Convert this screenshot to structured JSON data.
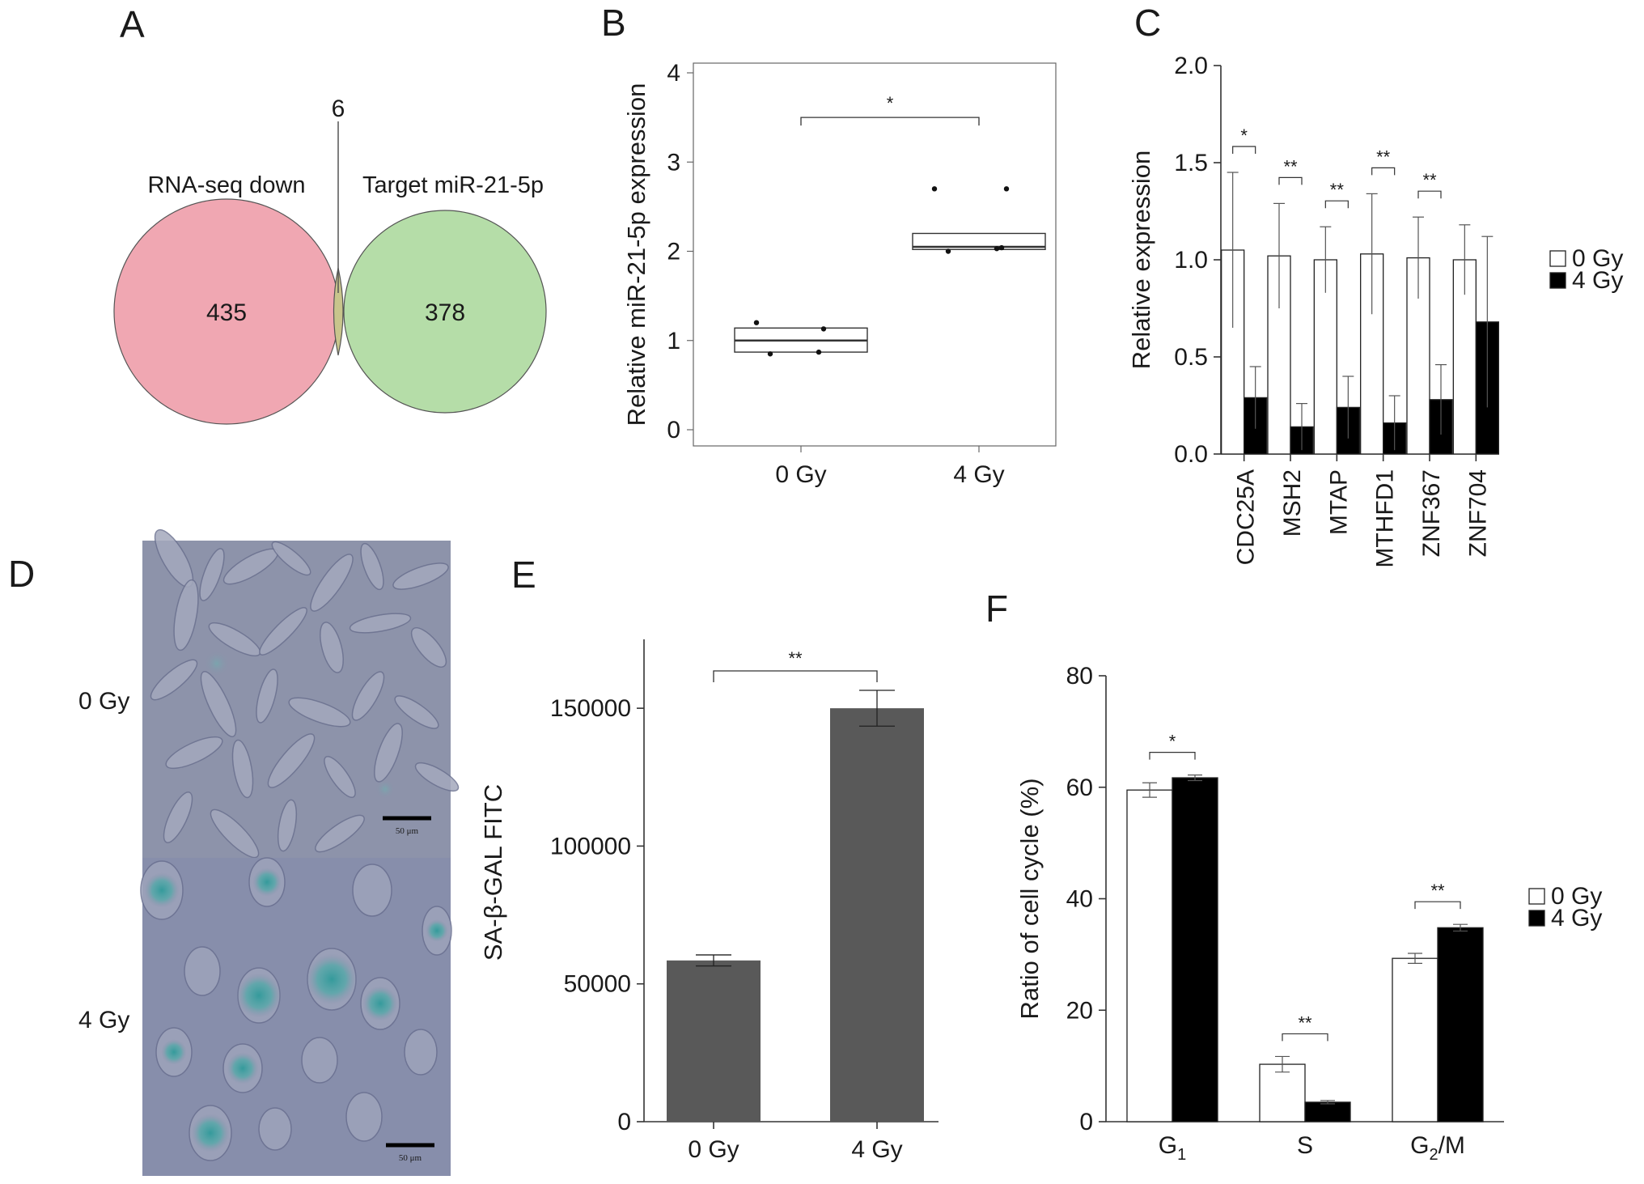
{
  "panels": {
    "A": {
      "letter": "A",
      "overlap_label": "6",
      "left_label": "RNA-seq down",
      "right_label": "Target miR-21-5p",
      "left_count": "435",
      "right_count": "378",
      "colors": {
        "left": "#f0a7b2",
        "right": "#b5dda8",
        "overlap": "#c8c58c"
      }
    },
    "B": {
      "letter": "B"
    },
    "C": {
      "letter": "C"
    },
    "D": {
      "letter": "D",
      "image_labels": [
        "0 Gy",
        "4 Gy"
      ],
      "scale_bar_label": "50 μm",
      "colors": {
        "background": "#8a91ab",
        "cells": "#2f9a9a"
      }
    },
    "E": {
      "letter": "E"
    },
    "F": {
      "letter": "F"
    }
  },
  "chart_data": [
    {
      "panel": "B",
      "type": "box",
      "categories": [
        "0 Gy",
        "4 Gy"
      ],
      "ylabel": "Relative miR-21-5p expression",
      "ylim": [
        0,
        4
      ],
      "yticks": [
        0,
        1,
        2,
        3,
        4
      ],
      "boxes": [
        {
          "category": "0 Gy",
          "q1": 0.87,
          "median": 1.0,
          "q3": 1.14,
          "points": [
            0.85,
            0.87,
            1.13,
            1.2
          ]
        },
        {
          "category": "4 Gy",
          "q1": 2.02,
          "median": 2.05,
          "q3": 2.2,
          "points": [
            2.0,
            2.03,
            2.04,
            2.7,
            2.7
          ]
        }
      ],
      "significance": [
        {
          "between": [
            "0 Gy",
            "4 Gy"
          ],
          "label": "*"
        }
      ]
    },
    {
      "panel": "C",
      "type": "bar",
      "categories": [
        "CDC25A",
        "MSH2",
        "MTAP",
        "MTHFD1",
        "ZNF367",
        "ZNF704"
      ],
      "ylabel": "Relative expression",
      "ylim": [
        0,
        2.0
      ],
      "yticks": [
        "0.0",
        "0.5",
        "1.0",
        "1.5",
        "2.0"
      ],
      "series": [
        {
          "name": "0 Gy",
          "color": "#ffffff",
          "values": [
            1.05,
            1.02,
            1.0,
            1.03,
            1.01,
            1.0
          ],
          "errors": [
            0.4,
            0.27,
            0.17,
            0.31,
            0.21,
            0.18
          ]
        },
        {
          "name": "4 Gy",
          "color": "#000000",
          "values": [
            0.29,
            0.14,
            0.24,
            0.16,
            0.28,
            0.68
          ],
          "errors": [
            0.16,
            0.12,
            0.16,
            0.14,
            0.18,
            0.44
          ]
        }
      ],
      "significance": [
        {
          "category": "CDC25A",
          "label": "*"
        },
        {
          "category": "MSH2",
          "label": "**"
        },
        {
          "category": "MTAP",
          "label": "**"
        },
        {
          "category": "MTHFD1",
          "label": "**"
        },
        {
          "category": "ZNF367",
          "label": "**"
        }
      ],
      "legend": "right"
    },
    {
      "panel": "E",
      "type": "bar",
      "categories": [
        "0 Gy",
        "4 Gy"
      ],
      "ylabel": "SA-β-GAL FITC",
      "ylim": [
        0,
        175000
      ],
      "yticks": [
        "0",
        "50000",
        "100000",
        "150000"
      ],
      "values": [
        58500,
        150000
      ],
      "errors": [
        2000,
        6500
      ],
      "bar_color": "#595959",
      "significance": [
        {
          "between": [
            "0 Gy",
            "4 Gy"
          ],
          "label": "**"
        }
      ]
    },
    {
      "panel": "F",
      "type": "bar",
      "categories": [
        "G1",
        "S",
        "G2/M"
      ],
      "ylabel": "Ratio of cell cycle (%)",
      "ylim": [
        0,
        80
      ],
      "yticks": [
        "0",
        "20",
        "40",
        "60",
        "80"
      ],
      "series": [
        {
          "name": "0 Gy",
          "color": "#ffffff",
          "values": [
            59.5,
            10.3,
            29.3
          ],
          "errors": [
            1.3,
            1.4,
            0.9
          ]
        },
        {
          "name": "4 Gy",
          "color": "#000000",
          "values": [
            61.7,
            3.5,
            34.8
          ],
          "errors": [
            0.5,
            0.3,
            0.6
          ]
        }
      ],
      "significance": [
        {
          "category": "G1",
          "label": "*"
        },
        {
          "category": "S",
          "label": "**"
        },
        {
          "category": "G2/M",
          "label": "**"
        }
      ],
      "legend": "right"
    }
  ]
}
